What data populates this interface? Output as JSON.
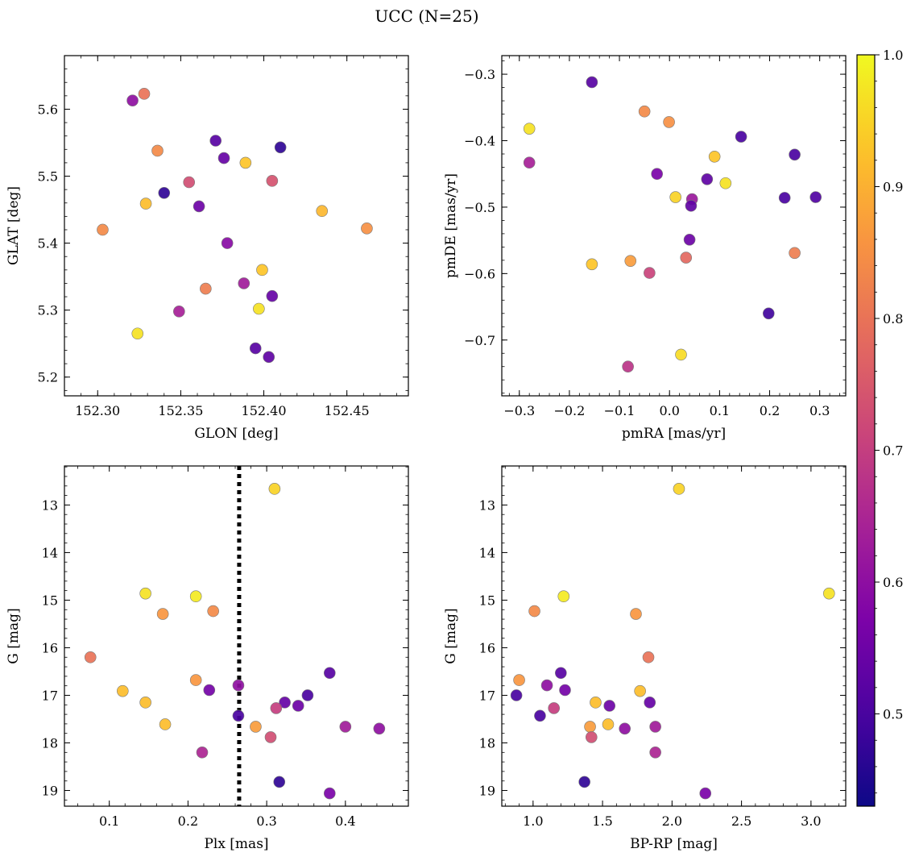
{
  "title": "UCC (N=25)",
  "colorbar": {
    "min": 0.43,
    "max": 1.0,
    "ticks": [
      0.5,
      0.6,
      0.7,
      0.8,
      0.9,
      1.0
    ],
    "tick_labels": [
      "0.5",
      "0.6",
      "0.7",
      "0.8",
      "0.9",
      "1.0"
    ],
    "colormap": "plasma"
  },
  "chart_data": [
    {
      "type": "scatter",
      "xlabel": "GLON [deg]",
      "ylabel": "GLAT [deg]",
      "xlim": [
        152.28,
        152.487
      ],
      "ylim": [
        5.172,
        5.68
      ],
      "xticks": [
        152.3,
        152.35,
        152.4,
        152.45
      ],
      "xtick_labels": [
        "152.30",
        "152.35",
        "152.40",
        "152.45"
      ],
      "yticks": [
        5.2,
        5.3,
        5.4,
        5.5,
        5.6
      ],
      "ytick_labels": [
        "5.2",
        "5.3",
        "5.4",
        "5.5",
        "5.6"
      ],
      "points": [
        {
          "x": 152.321,
          "y": 5.613,
          "c": 0.6
        },
        {
          "x": 152.328,
          "y": 5.623,
          "c": 0.8
        },
        {
          "x": 152.336,
          "y": 5.538,
          "c": 0.84
        },
        {
          "x": 152.371,
          "y": 5.553,
          "c": 0.52
        },
        {
          "x": 152.376,
          "y": 5.527,
          "c": 0.54
        },
        {
          "x": 152.389,
          "y": 5.52,
          "c": 0.93
        },
        {
          "x": 152.41,
          "y": 5.543,
          "c": 0.47
        },
        {
          "x": 152.34,
          "y": 5.475,
          "c": 0.47
        },
        {
          "x": 152.355,
          "y": 5.491,
          "c": 0.73
        },
        {
          "x": 152.405,
          "y": 5.493,
          "c": 0.74
        },
        {
          "x": 152.329,
          "y": 5.459,
          "c": 0.92
        },
        {
          "x": 152.361,
          "y": 5.455,
          "c": 0.55
        },
        {
          "x": 152.435,
          "y": 5.448,
          "c": 0.91
        },
        {
          "x": 152.462,
          "y": 5.422,
          "c": 0.85
        },
        {
          "x": 152.303,
          "y": 5.42,
          "c": 0.84
        },
        {
          "x": 152.378,
          "y": 5.4,
          "c": 0.59
        },
        {
          "x": 152.399,
          "y": 5.36,
          "c": 0.93
        },
        {
          "x": 152.388,
          "y": 5.34,
          "c": 0.63
        },
        {
          "x": 152.365,
          "y": 5.332,
          "c": 0.82
        },
        {
          "x": 152.405,
          "y": 5.321,
          "c": 0.54
        },
        {
          "x": 152.397,
          "y": 5.302,
          "c": 0.97
        },
        {
          "x": 152.349,
          "y": 5.298,
          "c": 0.64
        },
        {
          "x": 152.324,
          "y": 5.265,
          "c": 0.97
        },
        {
          "x": 152.395,
          "y": 5.243,
          "c": 0.52
        },
        {
          "x": 152.403,
          "y": 5.23,
          "c": 0.53
        }
      ]
    },
    {
      "type": "scatter",
      "xlabel": "pmRA [mas/yr]",
      "ylabel": "pmDE [mas/yr]",
      "xlim": [
        -0.335,
        0.352
      ],
      "ylim": [
        -0.784,
        -0.272
      ],
      "xticks": [
        -0.3,
        -0.2,
        -0.1,
        0.0,
        0.1,
        0.2,
        0.3
      ],
      "xtick_labels": [
        "−0.3",
        "−0.2",
        "−0.1",
        "0.0",
        "0.1",
        "0.2",
        "0.3"
      ],
      "yticks": [
        -0.3,
        -0.4,
        -0.5,
        -0.6,
        -0.7
      ],
      "ytick_labels": [
        "−0.3",
        "−0.4",
        "−0.5",
        "−0.6",
        "−0.7"
      ],
      "points": [
        {
          "x": -0.155,
          "y": -0.312,
          "c": 0.52
        },
        {
          "x": -0.05,
          "y": -0.356,
          "c": 0.84
        },
        {
          "x": -0.001,
          "y": -0.372,
          "c": 0.85
        },
        {
          "x": -0.28,
          "y": -0.382,
          "c": 0.97
        },
        {
          "x": -0.28,
          "y": -0.433,
          "c": 0.64
        },
        {
          "x": 0.143,
          "y": -0.394,
          "c": 0.5
        },
        {
          "x": 0.25,
          "y": -0.421,
          "c": 0.5
        },
        {
          "x": 0.09,
          "y": -0.424,
          "c": 0.93
        },
        {
          "x": -0.025,
          "y": -0.45,
          "c": 0.57
        },
        {
          "x": 0.075,
          "y": -0.458,
          "c": 0.53
        },
        {
          "x": 0.112,
          "y": -0.464,
          "c": 0.97
        },
        {
          "x": 0.012,
          "y": -0.485,
          "c": 0.95
        },
        {
          "x": 0.045,
          "y": -0.488,
          "c": 0.62
        },
        {
          "x": 0.043,
          "y": -0.498,
          "c": 0.53
        },
        {
          "x": 0.23,
          "y": -0.486,
          "c": 0.5
        },
        {
          "x": 0.292,
          "y": -0.485,
          "c": 0.51
        },
        {
          "x": 0.04,
          "y": -0.549,
          "c": 0.55
        },
        {
          "x": -0.155,
          "y": -0.586,
          "c": 0.93
        },
        {
          "x": -0.078,
          "y": -0.581,
          "c": 0.87
        },
        {
          "x": 0.033,
          "y": -0.576,
          "c": 0.78
        },
        {
          "x": 0.25,
          "y": -0.569,
          "c": 0.82
        },
        {
          "x": -0.04,
          "y": -0.599,
          "c": 0.71
        },
        {
          "x": 0.198,
          "y": -0.66,
          "c": 0.49
        },
        {
          "x": 0.023,
          "y": -0.722,
          "c": 0.96
        },
        {
          "x": -0.083,
          "y": -0.74,
          "c": 0.68
        }
      ]
    },
    {
      "type": "scatter",
      "xlabel": "Plx [mas]",
      "ylabel": "G [mag]",
      "xlim": [
        0.043,
        0.48
      ],
      "ylim": [
        19.33,
        12.18
      ],
      "y_inverted": true,
      "xticks": [
        0.1,
        0.2,
        0.3,
        0.4
      ],
      "xtick_labels": [
        "0.1",
        "0.2",
        "0.3",
        "0.4"
      ],
      "yticks": [
        13,
        14,
        15,
        16,
        17,
        18,
        19
      ],
      "ytick_labels": [
        "13",
        "14",
        "15",
        "16",
        "17",
        "18",
        "19"
      ],
      "vline": 0.265,
      "points": [
        {
          "x": 0.31,
          "y": 12.66,
          "c": 0.95
        },
        {
          "x": 0.146,
          "y": 14.86,
          "c": 0.97
        },
        {
          "x": 0.21,
          "y": 14.92,
          "c": 0.98
        },
        {
          "x": 0.168,
          "y": 15.29,
          "c": 0.86
        },
        {
          "x": 0.232,
          "y": 15.23,
          "c": 0.84
        },
        {
          "x": 0.076,
          "y": 16.2,
          "c": 0.8
        },
        {
          "x": 0.117,
          "y": 16.91,
          "c": 0.92
        },
        {
          "x": 0.21,
          "y": 16.68,
          "c": 0.86
        },
        {
          "x": 0.227,
          "y": 16.89,
          "c": 0.56
        },
        {
          "x": 0.264,
          "y": 16.79,
          "c": 0.6
        },
        {
          "x": 0.38,
          "y": 16.53,
          "c": 0.52
        },
        {
          "x": 0.352,
          "y": 17.0,
          "c": 0.5
        },
        {
          "x": 0.323,
          "y": 17.15,
          "c": 0.54
        },
        {
          "x": 0.146,
          "y": 17.15,
          "c": 0.92
        },
        {
          "x": 0.34,
          "y": 17.22,
          "c": 0.55
        },
        {
          "x": 0.312,
          "y": 17.27,
          "c": 0.7
        },
        {
          "x": 0.264,
          "y": 17.43,
          "c": 0.5
        },
        {
          "x": 0.171,
          "y": 17.61,
          "c": 0.92
        },
        {
          "x": 0.286,
          "y": 17.66,
          "c": 0.87
        },
        {
          "x": 0.4,
          "y": 17.66,
          "c": 0.63
        },
        {
          "x": 0.443,
          "y": 17.7,
          "c": 0.6
        },
        {
          "x": 0.305,
          "y": 17.88,
          "c": 0.73
        },
        {
          "x": 0.218,
          "y": 18.2,
          "c": 0.65
        },
        {
          "x": 0.316,
          "y": 18.82,
          "c": 0.47
        },
        {
          "x": 0.38,
          "y": 19.06,
          "c": 0.57
        }
      ]
    },
    {
      "type": "scatter",
      "xlabel": "BP-RP [mag]",
      "ylabel": "G [mag]",
      "xlim": [
        0.775,
        3.25
      ],
      "ylim": [
        19.33,
        12.18
      ],
      "y_inverted": true,
      "xticks": [
        1.0,
        1.5,
        2.0,
        2.5,
        3.0
      ],
      "xtick_labels": [
        "1.0",
        "1.5",
        "2.0",
        "2.5",
        "3.0"
      ],
      "yticks": [
        13,
        14,
        15,
        16,
        17,
        18,
        19
      ],
      "ytick_labels": [
        "13",
        "14",
        "15",
        "16",
        "17",
        "18",
        "19"
      ],
      "points": [
        {
          "x": 2.05,
          "y": 12.66,
          "c": 0.95
        },
        {
          "x": 3.13,
          "y": 14.86,
          "c": 0.97
        },
        {
          "x": 1.22,
          "y": 14.92,
          "c": 0.98
        },
        {
          "x": 1.01,
          "y": 15.23,
          "c": 0.84
        },
        {
          "x": 1.74,
          "y": 15.29,
          "c": 0.86
        },
        {
          "x": 1.83,
          "y": 16.2,
          "c": 0.8
        },
        {
          "x": 1.2,
          "y": 16.53,
          "c": 0.52
        },
        {
          "x": 0.9,
          "y": 16.68,
          "c": 0.86
        },
        {
          "x": 1.1,
          "y": 16.79,
          "c": 0.6
        },
        {
          "x": 1.23,
          "y": 16.89,
          "c": 0.56
        },
        {
          "x": 1.77,
          "y": 16.91,
          "c": 0.92
        },
        {
          "x": 0.88,
          "y": 17.0,
          "c": 0.5
        },
        {
          "x": 1.45,
          "y": 17.15,
          "c": 0.92
        },
        {
          "x": 1.84,
          "y": 17.15,
          "c": 0.54
        },
        {
          "x": 1.55,
          "y": 17.22,
          "c": 0.55
        },
        {
          "x": 1.15,
          "y": 17.27,
          "c": 0.7
        },
        {
          "x": 1.05,
          "y": 17.43,
          "c": 0.5
        },
        {
          "x": 1.54,
          "y": 17.61,
          "c": 0.92
        },
        {
          "x": 1.41,
          "y": 17.66,
          "c": 0.87
        },
        {
          "x": 1.88,
          "y": 17.66,
          "c": 0.63
        },
        {
          "x": 1.66,
          "y": 17.7,
          "c": 0.6
        },
        {
          "x": 1.42,
          "y": 17.88,
          "c": 0.73
        },
        {
          "x": 1.88,
          "y": 18.2,
          "c": 0.65
        },
        {
          "x": 1.37,
          "y": 18.82,
          "c": 0.47
        },
        {
          "x": 2.24,
          "y": 19.06,
          "c": 0.57
        }
      ]
    }
  ]
}
